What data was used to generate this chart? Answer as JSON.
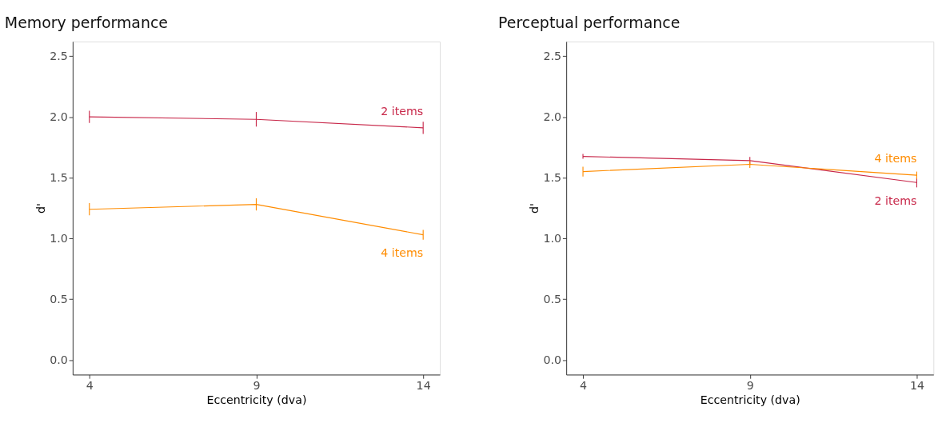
{
  "chart_data": [
    {
      "type": "line",
      "title": "Memory performance",
      "xlabel": "Eccentricity (dva)",
      "ylabel": "d'",
      "x": [
        4,
        9,
        14
      ],
      "xlim": [
        3.5,
        14.5
      ],
      "xticks": [
        4,
        9,
        14
      ],
      "ylim": [
        -0.12,
        2.62
      ],
      "yticks": [
        {
          "value": 0,
          "label": "0.0"
        },
        0.5,
        {
          "value": 1,
          "label": "1.0"
        },
        1.5,
        {
          "value": 2,
          "label": "2.0"
        },
        2.5
      ],
      "grid": false,
      "line_style": "solid",
      "series": [
        {
          "name": "2 items",
          "color": "#c8284a",
          "values": [
            2.0,
            1.98,
            1.91
          ],
          "errors": [
            0.05,
            0.06,
            0.05
          ]
        },
        {
          "name": "4 items",
          "color": "#ff8c00",
          "values": [
            1.24,
            1.28,
            1.03
          ],
          "errors": [
            0.05,
            0.05,
            0.04
          ]
        }
      ]
    },
    {
      "type": "line",
      "title": "Perceptual performance",
      "xlabel": "Eccentricity (dva)",
      "ylabel": "d'",
      "x": [
        4,
        9,
        14
      ],
      "xlim": [
        3.5,
        14.5
      ],
      "xticks": [
        4,
        9,
        14
      ],
      "ylim": [
        -0.12,
        2.62
      ],
      "yticks": [
        {
          "value": 0,
          "label": "0.0"
        },
        0.5,
        {
          "value": 1,
          "label": "1.0"
        },
        1.5,
        {
          "value": 2,
          "label": "2.0"
        },
        2.5
      ],
      "grid": false,
      "line_style": "solid",
      "series": [
        {
          "name": "2 items",
          "color": "#c8284a",
          "values": [
            1.675,
            1.64,
            1.46
          ],
          "errors": [
            0.02,
            0.03,
            0.04
          ]
        },
        {
          "name": "4 items",
          "color": "#ff8c00",
          "values": [
            1.55,
            1.61,
            1.52
          ],
          "errors": [
            0.04,
            0.03,
            0.03
          ]
        }
      ]
    }
  ]
}
